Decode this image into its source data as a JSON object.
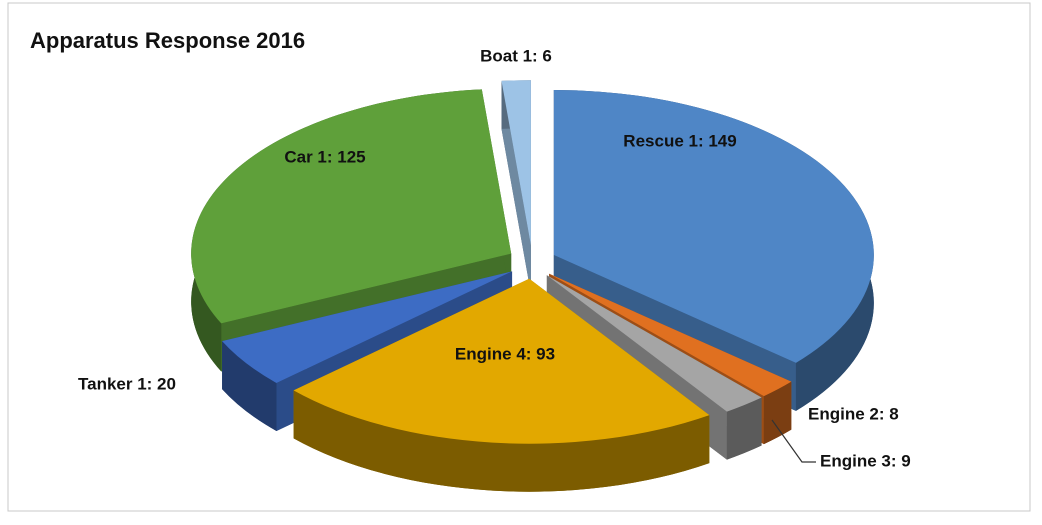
{
  "chart_data": {
    "type": "pie3d",
    "title": "Apparatus Response 2016",
    "values": [
      149,
      8,
      9,
      93,
      20,
      125,
      6
    ],
    "value_labels": [
      "Rescue 1: 149",
      "Engine 2: 8",
      "Engine 3: 9",
      "Engine 4: 93",
      "Tanker 1: 20",
      "Car 1: 125",
      "Boat 1: 6"
    ],
    "colors": [
      "#4f86c6",
      "#e07020",
      "#a5a5a5",
      "#e2a800",
      "#3d6cc4",
      "#5fa03a",
      "#9dc3e6"
    ]
  }
}
